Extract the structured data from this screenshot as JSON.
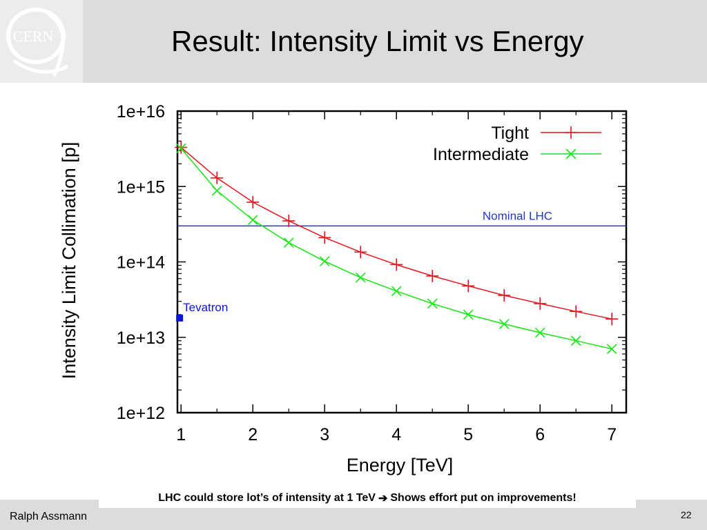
{
  "slide": {
    "title": "Result: Intensity Limit vs Energy",
    "logo_text": "CERN",
    "note_before": "LHC could store lot’s of intensity at 1 TeV",
    "note_arrow": "➔",
    "note_after": "Shows effort put on improvements!",
    "author": "Ralph Assmann",
    "page_number": "22"
  },
  "chart_data": {
    "type": "line",
    "title": "",
    "xlabel": "Energy [TeV]",
    "ylabel": "Intensity Limit Collimation [p]",
    "xlim": [
      0.95,
      7.2
    ],
    "ylim": [
      1000000000000.0,
      1e+16
    ],
    "yscale": "log",
    "grid": false,
    "legend_position": "top-right",
    "x_ticks": [
      1,
      2,
      3,
      4,
      5,
      6,
      7
    ],
    "x_tick_labels": [
      "1",
      "2",
      "3",
      "4",
      "5",
      "6",
      "7"
    ],
    "y_ticks": [
      1000000000000.0,
      10000000000000.0,
      100000000000000.0,
      1000000000000000.0,
      1e+16
    ],
    "y_tick_labels": [
      "1e+12",
      "1e+13",
      "1e+14",
      "1e+15",
      "1e+16"
    ],
    "x": [
      1,
      1.5,
      2,
      2.5,
      3,
      3.5,
      4,
      4.5,
      5,
      5.5,
      6,
      6.5,
      7
    ],
    "series": [
      {
        "name": "Tight",
        "color": "#e8141a",
        "marker": "plus",
        "values": [
          3300000000000000.0,
          1300000000000000.0,
          620000000000000.0,
          350000000000000.0,
          210000000000000.0,
          135000000000000.0,
          92000000000000.0,
          65000000000000.0,
          48000000000000.0,
          36000000000000.0,
          28000000000000.0,
          22000000000000.0,
          17500000000000.0
        ]
      },
      {
        "name": "Intermediate",
        "color": "#14e614",
        "marker": "cross",
        "values": [
          3200000000000000.0,
          880000000000000.0,
          360000000000000.0,
          180000000000000.0,
          102000000000000.0,
          62000000000000.0,
          41000000000000.0,
          28000000000000.0,
          20000000000000.0,
          15000000000000.0,
          11500000000000.0,
          9000000000000.0,
          7000000000000.0
        ]
      }
    ],
    "reference_lines": [
      {
        "label": "Nominal LHC",
        "y": 300000000000000.0,
        "color": "#2236c8"
      }
    ],
    "points": [
      {
        "label": "Tevatron",
        "x": 0.98,
        "y": 18000000000000.0,
        "color": "#0a14dc",
        "marker": "square"
      }
    ]
  }
}
